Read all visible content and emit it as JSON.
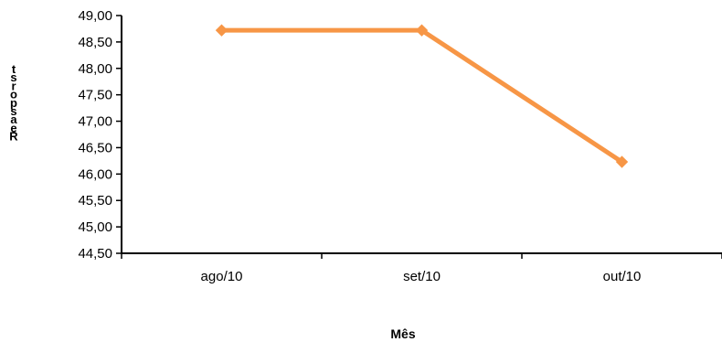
{
  "chart_data": {
    "type": "line",
    "categories": [
      "ago/10",
      "set/10",
      "out/10"
    ],
    "series": [
      {
        "values": [
          48.72,
          48.72,
          46.23
        ],
        "color": "#f79646"
      }
    ],
    "xlabel": "Mês",
    "ylabel": "Resposta",
    "ylabel_rendered": "tsropsaeR",
    "ylim": [
      44.5,
      49.0
    ],
    "ytick_step": 0.5,
    "ytick_labels": [
      "44,50",
      "45,00",
      "45,50",
      "46,00",
      "46,50",
      "47,00",
      "47,50",
      "48,00",
      "48,50",
      "49,00"
    ],
    "grid": false,
    "legend": false
  }
}
